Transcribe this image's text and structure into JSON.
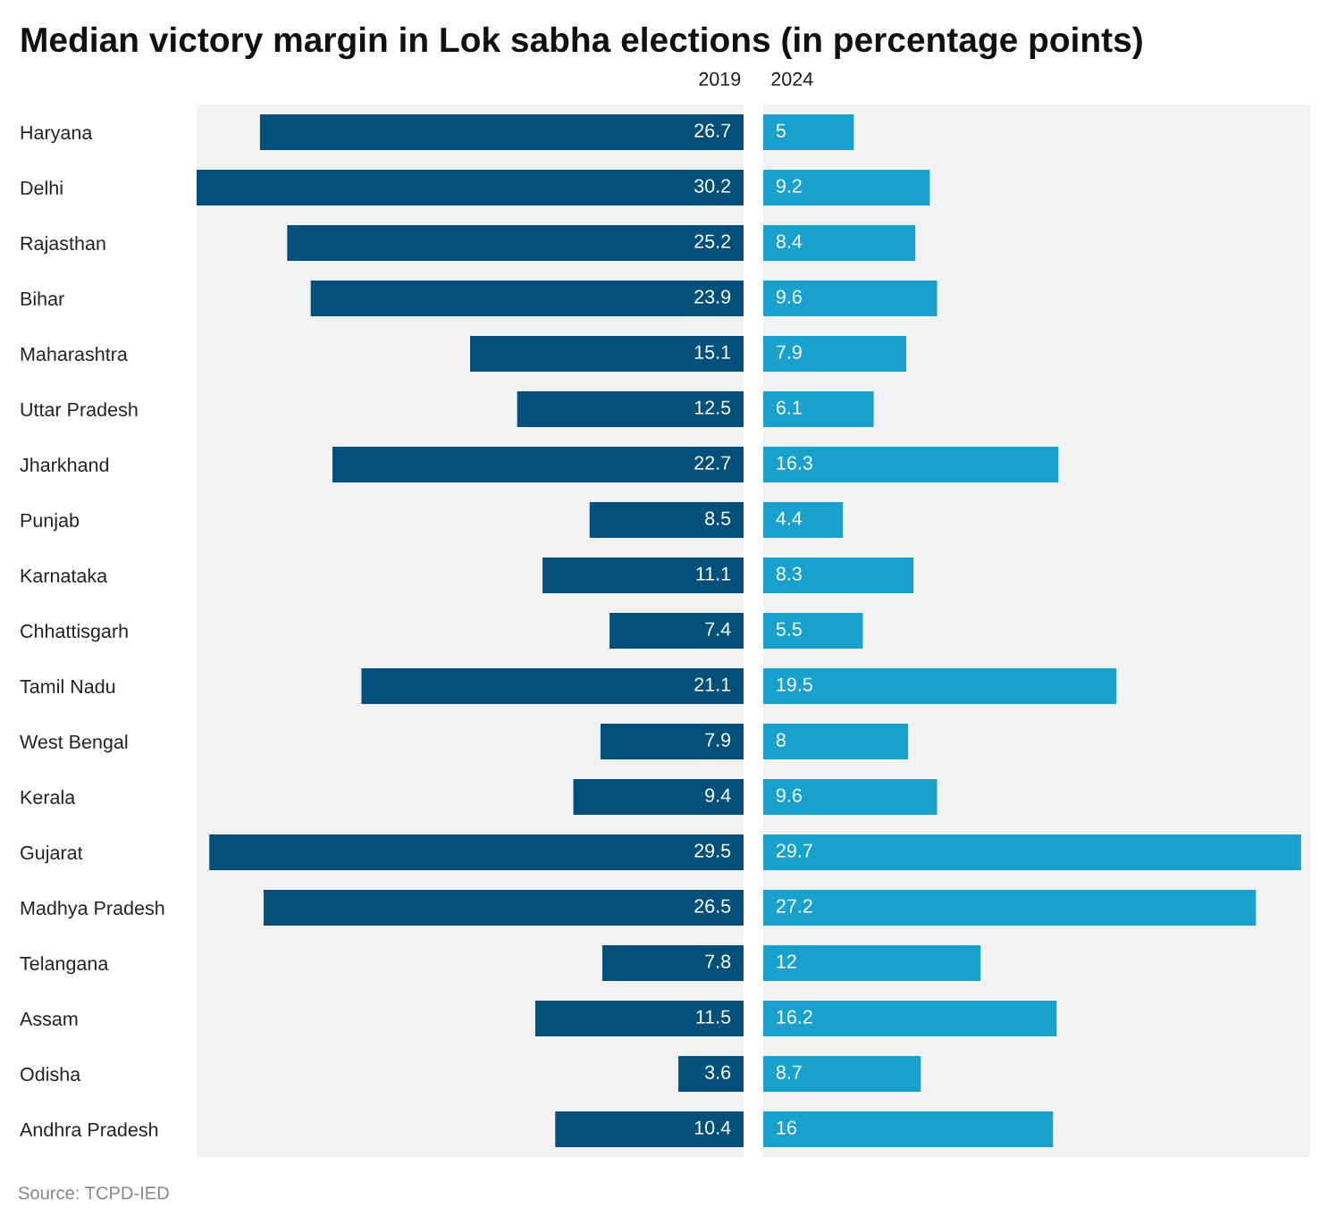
{
  "chart_data": [
    {
      "type": "bar",
      "orientation": "horizontal",
      "title": "Median victory margin in Lok sabha elections (in percentage points)",
      "categories": [
        "Haryana",
        "Delhi",
        "Rajasthan",
        "Bihar",
        "Maharashtra",
        "Uttar Pradesh",
        "Jharkhand",
        "Punjab",
        "Karnataka",
        "Chhattisgarh",
        "Tamil Nadu",
        "West Bengal",
        "Kerala",
        "Gujarat",
        "Madhya Pradesh",
        "Telangana",
        "Assam",
        "Odisha",
        "Andhra Pradesh"
      ],
      "series": [
        {
          "name": "2019",
          "color": "#03517a",
          "values": [
            26.7,
            30.2,
            25.2,
            23.9,
            15.1,
            12.5,
            22.7,
            8.5,
            11.1,
            7.4,
            21.1,
            7.9,
            9.4,
            29.5,
            26.5,
            7.8,
            11.5,
            3.6,
            10.4
          ]
        }
      ],
      "xlim": [
        30.2,
        0
      ],
      "data_labels": true,
      "tick_labels": "y",
      "legend": false
    },
    {
      "type": "bar",
      "orientation": "horizontal",
      "categories": [
        null,
        null,
        null,
        null,
        null,
        null,
        null,
        null,
        null,
        null,
        null,
        null,
        null,
        null,
        null,
        null,
        null,
        null,
        null
      ],
      "series": [
        {
          "name": "2024",
          "color": "#18a1cd",
          "values": [
            5,
            9.2,
            8.4,
            9.6,
            7.9,
            6.1,
            16.3,
            4.4,
            8.3,
            5.5,
            19.5,
            8,
            9.6,
            29.7,
            27.2,
            12,
            16.2,
            8.7,
            16
          ]
        }
      ],
      "xlim": [
        0,
        30.2
      ],
      "data_labels": true,
      "tick_labels": false,
      "legend": false,
      "annotations": [
        "Source: TCPD-IED"
      ]
    }
  ]
}
